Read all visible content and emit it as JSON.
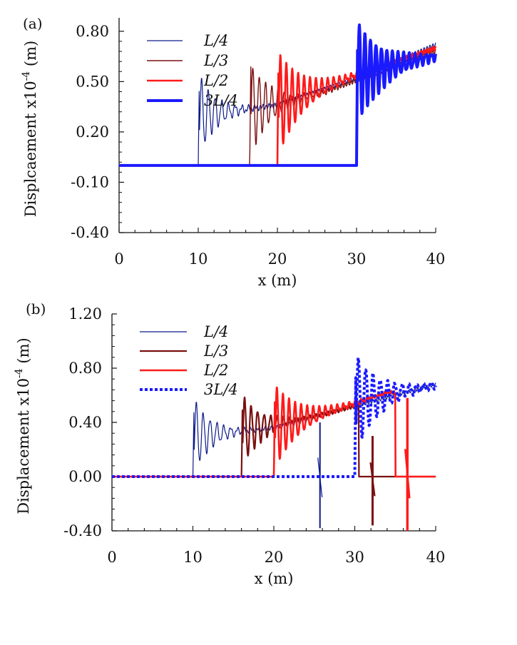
{
  "chart_data": [
    {
      "panel": "(a)",
      "type": "line",
      "xlabel": "x (m)",
      "ylabel": "Displcaement x10",
      "ylabel_exp": "-4",
      "ylabel_unit": " (m)",
      "xlim": [
        0,
        40
      ],
      "ylim": [
        -0.4,
        0.88
      ],
      "xticks": [
        "0",
        "10",
        "20",
        "30",
        "40"
      ],
      "yticks": [
        "0.80",
        "0.50",
        "0.20",
        "-0.10",
        "-0.40"
      ],
      "ytick_values": [
        0.8,
        0.5,
        0.2,
        -0.1,
        -0.4
      ],
      "grid": false,
      "legend_position": "top-left",
      "series": [
        {
          "name": "L/4",
          "color": "#0d1a8a",
          "width": 1.2,
          "dashed": false,
          "front": 10.0,
          "amp": 0.28,
          "decay": 2.2,
          "period": 0.85,
          "trend": [
            [
              10,
              0.3
            ],
            [
              20,
              0.36
            ],
            [
              30,
              0.52
            ],
            [
              40,
              0.72
            ]
          ],
          "base": 0.0
        },
        {
          "name": "L/3",
          "color": "#7a1010",
          "width": 1.4,
          "dashed": false,
          "front": 16.5,
          "amp": 0.32,
          "decay": 2.6,
          "period": 0.8,
          "trend": [
            [
              16.5,
              0.34
            ],
            [
              25,
              0.42
            ],
            [
              40,
              0.68
            ]
          ],
          "base": 0.0
        },
        {
          "name": "L/2",
          "color": "#ff1a1a",
          "width": 2.6,
          "dashed": false,
          "front": 20.0,
          "amp": 0.36,
          "decay": 3.0,
          "period": 0.75,
          "trend": [
            [
              20,
              0.36
            ],
            [
              30,
              0.54
            ],
            [
              40,
              0.7
            ]
          ],
          "base": 0.0
        },
        {
          "name": "3L/4",
          "color": "#1a1aff",
          "width": 4.0,
          "dashed": false,
          "front": 30.0,
          "amp": 0.34,
          "decay": 3.5,
          "period": 0.7,
          "trend": [
            [
              30,
              0.55
            ],
            [
              35,
              0.6
            ],
            [
              40,
              0.65
            ]
          ],
          "base": 0.0
        }
      ]
    },
    {
      "panel": "(b)",
      "type": "line",
      "xlabel": "x (m)",
      "ylabel": "Displacement x10",
      "ylabel_exp": "-4",
      "ylabel_unit": " (m)",
      "xlim": [
        0,
        40
      ],
      "ylim": [
        -0.4,
        1.2
      ],
      "xticks": [
        "0",
        "10",
        "20",
        "30",
        "40"
      ],
      "yticks": [
        "1.20",
        "0.80",
        "0.40",
        "0.00",
        "-0.40"
      ],
      "ytick_values": [
        1.2,
        0.8,
        0.4,
        0.0,
        -0.4
      ],
      "grid": false,
      "legend_position": "top-left",
      "series": [
        {
          "name": "L/4",
          "color": "#0d1a8a",
          "width": 1.2,
          "dashed": false,
          "front": 10.0,
          "amp": 0.32,
          "decay": 2.2,
          "period": 0.85,
          "trend": [
            [
              10,
              0.3
            ],
            [
              20,
              0.36
            ],
            [
              30,
              0.52
            ],
            [
              40,
              0.68
            ]
          ],
          "base": 0.0,
          "spike": {
            "x": 25.7,
            "lo": -0.38,
            "hi": 0.4
          }
        },
        {
          "name": "L/3",
          "color": "#7a1010",
          "width": 2.2,
          "dashed": false,
          "front": 16.0,
          "amp": 0.3,
          "decay": 2.6,
          "period": 0.8,
          "trend": [
            [
              16,
              0.34
            ],
            [
              25,
              0.44
            ],
            [
              30,
              0.52
            ]
          ],
          "end": 30.5,
          "base": 0.0,
          "spike": {
            "x": 32.2,
            "lo": -0.36,
            "hi": 0.3
          }
        },
        {
          "name": "L/2",
          "color": "#ff1a1a",
          "width": 2.6,
          "dashed": false,
          "front": 20.0,
          "amp": 0.36,
          "decay": 3.0,
          "period": 0.75,
          "trend": [
            [
              20,
              0.36
            ],
            [
              30,
              0.54
            ],
            [
              34,
              0.62
            ]
          ],
          "end": 35.0,
          "base": 0.0,
          "spike": {
            "x": 36.5,
            "lo": -0.4,
            "hi": 0.58
          }
        },
        {
          "name": "3L/4",
          "color": "#1a1aff",
          "width": 4.0,
          "dashed": true,
          "front": 30.0,
          "amp": 0.4,
          "decay": 3.0,
          "period": 0.9,
          "trend": [
            [
              30,
              0.55
            ],
            [
              35,
              0.62
            ],
            [
              40,
              0.67
            ]
          ],
          "base": 0.0
        }
      ]
    }
  ]
}
